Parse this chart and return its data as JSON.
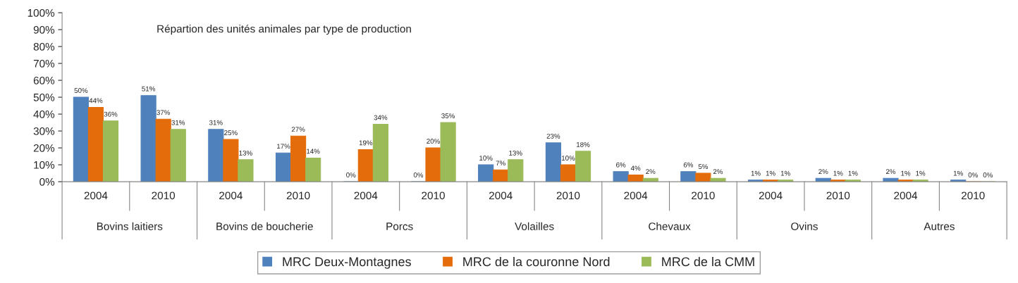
{
  "chart_data": {
    "type": "bar",
    "title": "Répartion des unités animales par type de production",
    "categories": [
      "2004",
      "2010",
      "2004",
      "2010",
      "2004",
      "2010",
      "2004",
      "2010",
      "2004",
      "2010",
      "2004",
      "2010",
      "2004",
      "2010"
    ],
    "annotations": [
      "Bovins laitiers",
      "Bovins de boucherie",
      "Porcs",
      "Volailles",
      "Chevaux",
      "Ovins",
      "Autres"
    ],
    "series": [
      {
        "name": "MRC Deux-Montagnes",
        "color": "#4f81bd",
        "values": [
          50,
          51,
          31,
          17,
          0,
          0,
          10,
          23,
          6,
          6,
          1,
          2,
          2,
          1
        ],
        "value_labels": [
          "50%",
          "51%",
          "31%",
          "17%",
          "0%",
          "0%",
          "10%",
          "23%",
          "6%",
          "6%",
          "1%",
          "2%",
          "2%",
          "1%"
        ]
      },
      {
        "name": "MRC de la couronne Nord",
        "color": "#e46c0a",
        "values": [
          44,
          37,
          25,
          27,
          19,
          20,
          7,
          10,
          4,
          5,
          1,
          1,
          1,
          0
        ],
        "value_labels": [
          "44%",
          "37%",
          "25%",
          "27%",
          "19%",
          "20%",
          "7%",
          "10%",
          "4%",
          "5%",
          "1%",
          "1%",
          "1%",
          "0%"
        ]
      },
      {
        "name": "MRC de la CMM",
        "color": "#9bbb59",
        "values": [
          36,
          31,
          13,
          14,
          34,
          35,
          13,
          18,
          2,
          2,
          1,
          1,
          1,
          0
        ],
        "value_labels": [
          "36%",
          "31%",
          "13%",
          "14%",
          "34%",
          "35%",
          "13%",
          "18%",
          "2%",
          "2%",
          "1%",
          "1%",
          "1%",
          "0%"
        ]
      }
    ],
    "ylim": [
      0,
      100
    ],
    "yticks": [
      {
        "value": 0,
        "label": "0%"
      },
      {
        "value": 10,
        "label": "10%"
      },
      {
        "value": 20,
        "label": "20%"
      },
      {
        "value": 30,
        "label": "30%"
      },
      {
        "value": 40,
        "label": "40%"
      },
      {
        "value": 50,
        "label": "50%"
      },
      {
        "value": 60,
        "label": "60%"
      },
      {
        "value": 70,
        "label": "70%"
      },
      {
        "value": 80,
        "label": "80%"
      },
      {
        "value": 90,
        "label": "90%"
      },
      {
        "value": 100,
        "label": "100%"
      }
    ],
    "grid": false,
    "legend": "bottom"
  }
}
